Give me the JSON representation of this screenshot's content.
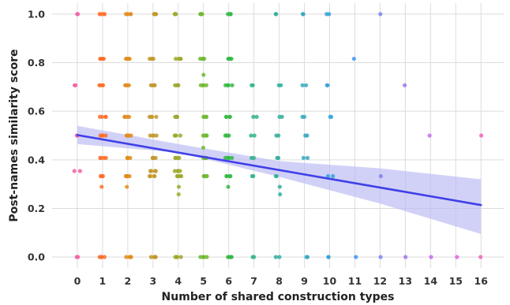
{
  "chart_data": {
    "type": "scatter",
    "xlabel": "Number of shared construction types",
    "ylabel": "Post-names similarity score",
    "xticks": [
      0,
      1,
      2,
      3,
      4,
      5,
      6,
      7,
      8,
      9,
      10,
      11,
      12,
      13,
      14,
      15,
      16
    ],
    "yticks": [
      0.0,
      0.2,
      0.4,
      0.6,
      0.8,
      1.0
    ],
    "xlim": [
      -1,
      16.9
    ],
    "ylim": [
      -0.045,
      1.045
    ],
    "grid": true,
    "colors": {
      "background": "#ffffff",
      "grid": "#dcdcdc",
      "regression_line": "#4040e8",
      "confidence_band": "#b8b8f5",
      "group_palette": [
        "#f35fa4",
        "#fe6e2a",
        "#e08c1b",
        "#c1992a",
        "#9da82b",
        "#6fb832",
        "#34b845",
        "#31b38d",
        "#33ae9e",
        "#34aabe",
        "#33a4da",
        "#4793f0",
        "#7d84f0",
        "#a373ee",
        "#c66aed",
        "#e461df",
        "#f560bb"
      ]
    },
    "y_levels": [
      0.0,
      0.333,
      0.354,
      0.408,
      0.5,
      0.577,
      0.707,
      0.816,
      1.0
    ],
    "scatter_groups": [
      {
        "x": 0,
        "y": [
          1.0,
          0.707,
          0.5,
          0.354,
          0.0
        ]
      },
      {
        "x": 1,
        "y": [
          1.0,
          0.816,
          0.707,
          0.577,
          0.5,
          0.408,
          0.333,
          0.289,
          0.0
        ]
      },
      {
        "x": 2,
        "y": [
          1.0,
          0.816,
          0.707,
          0.577,
          0.5,
          0.408,
          0.333,
          0.289,
          0.0
        ]
      },
      {
        "x": 3,
        "y": [
          1.0,
          0.816,
          0.707,
          0.577,
          0.5,
          0.408,
          0.354,
          0.333,
          0.0
        ]
      },
      {
        "x": 4,
        "y": [
          1.0,
          0.816,
          0.707,
          0.577,
          0.5,
          0.408,
          0.354,
          0.333,
          0.289,
          0.258,
          0.0
        ]
      },
      {
        "x": 5,
        "y": [
          1.0,
          0.816,
          0.75,
          0.707,
          0.577,
          0.5,
          0.45,
          0.408,
          0.333,
          0.0
        ]
      },
      {
        "x": 6,
        "y": [
          1.0,
          0.816,
          0.707,
          0.577,
          0.5,
          0.408,
          0.333,
          0.289,
          0.0
        ]
      },
      {
        "x": 7,
        "y": [
          0.707,
          0.577,
          0.5,
          0.408,
          0.333,
          0.0
        ]
      },
      {
        "x": 8,
        "y": [
          1.0,
          0.707,
          0.577,
          0.5,
          0.408,
          0.333,
          0.289,
          0.258,
          0.0
        ]
      },
      {
        "x": 9,
        "y": [
          1.0,
          0.707,
          0.577,
          0.5,
          0.408,
          0.0
        ]
      },
      {
        "x": 10,
        "y": [
          1.0,
          0.707,
          0.577,
          0.333,
          0.0
        ]
      },
      {
        "x": 11,
        "y": [
          0.816,
          0.0
        ]
      },
      {
        "x": 12,
        "y": [
          1.0,
          0.333,
          0.0
        ]
      },
      {
        "x": 13,
        "y": [
          0.707,
          0.0
        ]
      },
      {
        "x": 14,
        "y": [
          0.5,
          0.0
        ]
      },
      {
        "x": 15,
        "y": [
          0.0
        ]
      },
      {
        "x": 16,
        "y": [
          0.5,
          0.0
        ]
      }
    ],
    "regression": {
      "intercept": 0.502,
      "slope": -0.018,
      "x_range": [
        0,
        16
      ]
    },
    "confidence_band": {
      "x": [
        0,
        4,
        8,
        12,
        16
      ],
      "lower": [
        0.465,
        0.43,
        0.33,
        0.22,
        0.095
      ],
      "upper": [
        0.54,
        0.465,
        0.395,
        0.365,
        0.32
      ]
    }
  }
}
